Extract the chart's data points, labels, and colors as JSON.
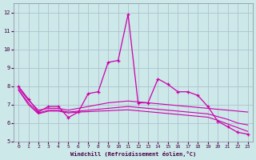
{
  "xlabel": "Windchill (Refroidissement éolien,°C)",
  "background_color": "#cce8e8",
  "grid_color": "#aabbcc",
  "line_color": "#cc00aa",
  "x": [
    0,
    1,
    2,
    3,
    4,
    5,
    6,
    7,
    8,
    9,
    10,
    11,
    12,
    13,
    14,
    15,
    16,
    17,
    18,
    19,
    20,
    21,
    22,
    23
  ],
  "y_main": [
    8.0,
    7.3,
    6.6,
    6.9,
    6.9,
    6.3,
    6.6,
    7.6,
    7.7,
    9.3,
    9.4,
    11.9,
    7.1,
    7.1,
    8.4,
    8.1,
    7.7,
    7.7,
    7.5,
    6.9,
    6.1,
    5.8,
    5.5,
    5.4
  ],
  "y_upper": [
    7.9,
    7.25,
    6.7,
    6.8,
    6.8,
    6.7,
    6.8,
    6.9,
    7.0,
    7.1,
    7.15,
    7.2,
    7.15,
    7.1,
    7.05,
    7.0,
    6.95,
    6.9,
    6.85,
    6.8,
    6.75,
    6.7,
    6.65,
    6.6
  ],
  "y_mid": [
    7.8,
    7.1,
    6.55,
    6.7,
    6.7,
    6.6,
    6.65,
    6.7,
    6.75,
    6.8,
    6.85,
    6.9,
    6.85,
    6.8,
    6.75,
    6.7,
    6.65,
    6.6,
    6.55,
    6.5,
    6.35,
    6.2,
    6.0,
    5.9
  ],
  "y_lower": [
    7.8,
    7.0,
    6.5,
    6.65,
    6.65,
    6.55,
    6.6,
    6.62,
    6.65,
    6.67,
    6.7,
    6.72,
    6.67,
    6.62,
    6.57,
    6.52,
    6.47,
    6.42,
    6.37,
    6.32,
    6.15,
    5.95,
    5.75,
    5.55
  ],
  "ylim": [
    5,
    12.5
  ],
  "xlim": [
    -0.5,
    23.5
  ],
  "yticks": [
    5,
    6,
    7,
    8,
    9,
    10,
    11,
    12
  ],
  "xticks": [
    0,
    1,
    2,
    3,
    4,
    5,
    6,
    7,
    8,
    9,
    10,
    11,
    12,
    13,
    14,
    15,
    16,
    17,
    18,
    19,
    20,
    21,
    22,
    23
  ]
}
